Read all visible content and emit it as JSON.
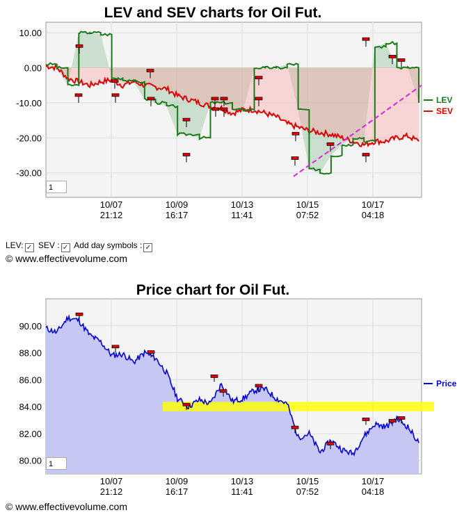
{
  "top_chart": {
    "title": "LEV and SEV charts for Oil Fut.",
    "legend": [
      {
        "name": "LEV",
        "color": "#1a7a1a"
      },
      {
        "name": "SEV",
        "color": "#e00000"
      }
    ],
    "zoom_box": "1"
  },
  "controls": {
    "lev_label": "LEV:",
    "sev_label": "SEV :",
    "day_label": "Add day symbols :",
    "check": "✓"
  },
  "bottom_chart": {
    "title": "Price chart for Oil Fut.",
    "zoom_box": "1"
  },
  "copyright": "© www.effectivevolume.com",
  "chart_data": [
    {
      "type": "line",
      "title": "LEV and SEV charts for Oil Fut.",
      "yticks": [
        "10.00",
        "0.00",
        "-10.00",
        "-20.00",
        "-30.00"
      ],
      "ylim": [
        -37,
        13
      ],
      "xticks": [
        {
          "date": "10/07",
          "time": "21:12"
        },
        {
          "date": "10/09",
          "time": "16:17"
        },
        {
          "date": "10/13",
          "time": "11:41"
        },
        {
          "date": "10/15",
          "time": "07:52"
        },
        {
          "date": "10/17",
          "time": "04:18"
        }
      ],
      "grid": true,
      "legend_position": "right",
      "series": [
        {
          "name": "LEV",
          "color": "#1a7a1a",
          "values": [
            1,
            0,
            -5,
            10,
            10,
            9.5,
            -3,
            -3.5,
            -4,
            -9,
            -10,
            -11,
            -19,
            -19,
            -20,
            -10,
            -10,
            -12,
            -12,
            0,
            0,
            0,
            1,
            -12,
            -29,
            -30,
            -25,
            -22,
            -20,
            -21,
            6,
            7,
            0,
            0,
            -10
          ]
        },
        {
          "name": "SEV",
          "color": "#e00000",
          "values": [
            0.5,
            0,
            -3,
            -4,
            -5,
            -4,
            -3.5,
            -5,
            -4,
            -5,
            -5.5,
            -6,
            -8,
            -9,
            -10,
            -11,
            -11.5,
            -13,
            -12,
            -12,
            -13,
            -14,
            -16,
            -17,
            -18,
            -18.5,
            -19,
            -20,
            -21,
            -22,
            -21,
            -21,
            -20,
            -19.5,
            -21
          ]
        }
      ],
      "annotations": [
        "dashed magenta trend line from (10/15, -31) rising to right edge (-5)"
      ]
    },
    {
      "type": "area",
      "title": "Price chart for Oil Fut.",
      "yticks": [
        "90.00",
        "88.00",
        "86.00",
        "84.00",
        "82.00",
        "80.00"
      ],
      "ylim": [
        79,
        92
      ],
      "xticks": [
        {
          "date": "10/07",
          "time": "21:12"
        },
        {
          "date": "10/09",
          "time": "16:17"
        },
        {
          "date": "10/13",
          "time": "11:41"
        },
        {
          "date": "10/15",
          "time": "07:52"
        },
        {
          "date": "10/17",
          "time": "04:18"
        }
      ],
      "grid": true,
      "legend_position": "right",
      "series": [
        {
          "name": "Price",
          "color": "#0000dd",
          "values": [
            89.8,
            89.5,
            90.6,
            90.4,
            89.3,
            88.8,
            87.8,
            87.9,
            87.3,
            88.0,
            87.6,
            86.5,
            84.6,
            84.0,
            84.5,
            84.2,
            85.7,
            84.4,
            84.6,
            85.2,
            85.3,
            84.6,
            84.2,
            81.7,
            82.0,
            80.6,
            81.5,
            80.8,
            80.5,
            81.8,
            82.7,
            82.5,
            83.1,
            82.5,
            81.3
          ]
        }
      ],
      "annotations": [
        "yellow horizontal band at 84.00"
      ]
    }
  ]
}
